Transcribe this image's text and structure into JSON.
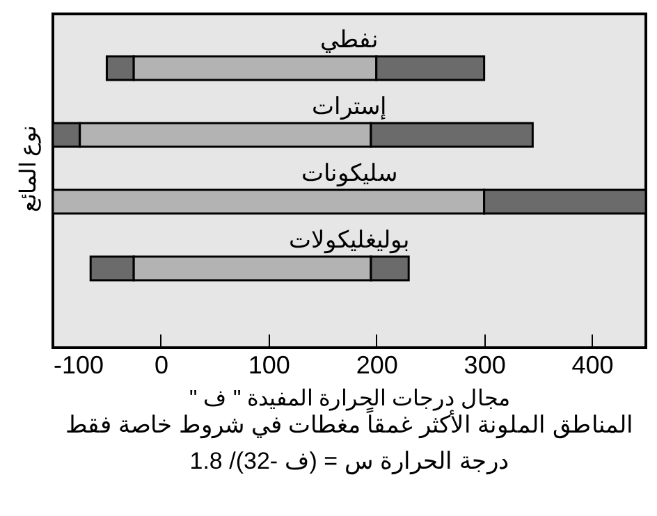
{
  "chart_data": {
    "type": "bar",
    "orientation": "horizontal",
    "categories": [
      "نفطي",
      "إسترات",
      "سليكونات",
      "بوليغليكولات"
    ],
    "series": [
      {
        "color": "#6b6b6b",
        "base": [
          -50,
          -100,
          null,
          -65
        ],
        "values": [
          25,
          25,
          null,
          40
        ]
      },
      {
        "color": "#b3b3b3",
        "base": [
          -25,
          -75,
          -100,
          -25
        ],
        "values": [
          225,
          270,
          400,
          220
        ]
      },
      {
        "color": "#6b6b6b",
        "base": [
          200,
          195,
          300,
          195
        ],
        "values": [
          100,
          150,
          150,
          35
        ]
      }
    ],
    "xlim": [
      -100,
      450
    ],
    "xticks": [
      -100,
      0,
      100,
      200,
      300,
      400
    ],
    "xlabel": "مجال درجات الحرارة المفيدة \" ف \"",
    "ylabel": "نوع المائع",
    "annotations": [
      "المناطق الملونة الأكثر غمقاً مغطات في شروط خاصة فقط",
      "درجة الحرارة س = (ف -32)/ 1.8"
    ],
    "grid": false
  }
}
